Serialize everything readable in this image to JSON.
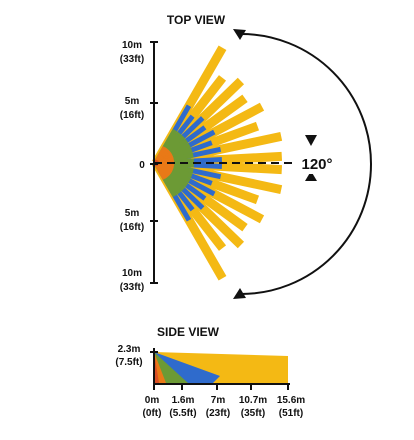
{
  "top_view": {
    "title": "TOP VIEW",
    "angle_label": "120°",
    "origin_label": "0",
    "axis_labels": [
      {
        "line1": "10m",
        "line2": "(33ft)"
      },
      {
        "line1": "5m",
        "line2": "(16ft)"
      },
      {
        "line1": "5m",
        "line2": "(16ft)"
      },
      {
        "line1": "10m",
        "line2": "(33ft)"
      }
    ]
  },
  "side_view": {
    "title": "SIDE VIEW",
    "height_label": {
      "line1": "2.3m",
      "line2": "(7.5ft)"
    },
    "distance_ticks": [
      {
        "line1": "0m",
        "line2": "(0ft)"
      },
      {
        "line1": "1.6m",
        "line2": "(5.5ft)"
      },
      {
        "line1": "7m",
        "line2": "(23ft)"
      },
      {
        "line1": "10.7m",
        "line2": "(35ft)"
      },
      {
        "line1": "15.6m",
        "line2": "(51ft)"
      }
    ]
  },
  "colors": {
    "zone_far": "#f4b914",
    "zone_mid": "#2f6bcc",
    "zone_near": "#6c9a35",
    "zone_close": "#e97917",
    "zone_origin": "#d94f25",
    "axis": "#111111"
  }
}
